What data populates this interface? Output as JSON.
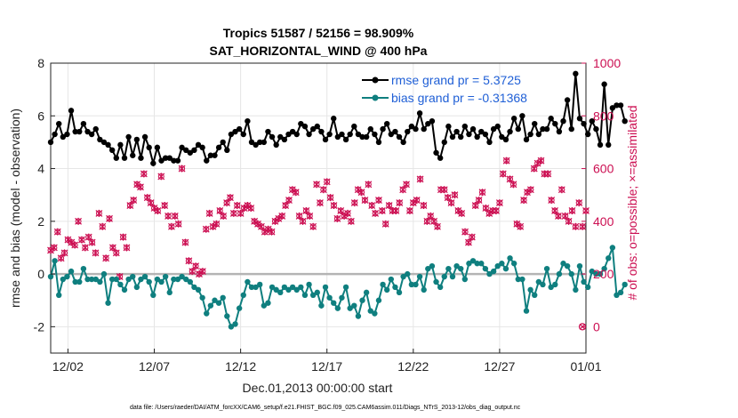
{
  "chart_data": {
    "type": "line",
    "title": "Tropics 51587 / 52156 = 98.909%",
    "subtitle": "SAT_HORIZONTAL_WIND @ 400 hPa",
    "xlabel": "Dec.01,2013 00:00:00 start",
    "ylabel": "rmse and bias (model - observation)",
    "y2label": "# of obs: o=possible; ×=assimilated",
    "footer": "data file: /Users/raeder/DAI/ATM_forcXX/CAM6_setup/f.e21.FHIST_BGC.f09_025.CAM6assim.011/Diags_NTrS_2013-12/obs_diag_output.nc",
    "xlim": [
      0,
      31
    ],
    "ylim": [
      -3,
      8
    ],
    "y2lim": [
      -100,
      1000
    ],
    "x_ticks": [
      1,
      6,
      11,
      16,
      21,
      26,
      31
    ],
    "x_tick_labels": [
      "12/02",
      "12/07",
      "12/12",
      "12/17",
      "12/22",
      "12/27",
      "01/01"
    ],
    "y_ticks": [
      "-2",
      "0",
      "2",
      "4",
      "6",
      "8"
    ],
    "y2_ticks": [
      "0",
      "200",
      "400",
      "600",
      "800",
      "1000"
    ],
    "legend": [
      {
        "label": "rmse grand pr = 5.3725",
        "color": "#000000"
      },
      {
        "label": "bias grand pr = -0.31368",
        "color": "#0f7f7f"
      }
    ],
    "colors": {
      "rmse": "#000000",
      "bias": "#0f7f7f",
      "obs": "#cc0f52",
      "zero": "#b4b4b4"
    },
    "step": 0.25,
    "series": [
      {
        "name": "rmse",
        "values": [
          5.0,
          5.3,
          5.7,
          5.2,
          5.3,
          6.2,
          5.4,
          5.4,
          5.7,
          5.4,
          5.3,
          5.5,
          5.1,
          5.0,
          4.9,
          4.7,
          4.4,
          4.9,
          4.4,
          5.2,
          4.5,
          5.1,
          4.4,
          5.2,
          4.8,
          4.2,
          4.8,
          4.3,
          4.4,
          4.4,
          4.3,
          4.3,
          4.8,
          4.7,
          4.6,
          4.7,
          4.9,
          4.8,
          4.3,
          4.5,
          4.5,
          4.8,
          5.0,
          4.7,
          5.3,
          5.4,
          5.5,
          5.3,
          5.8,
          5.0,
          4.9,
          5.0,
          5.0,
          5.4,
          5.2,
          4.9,
          5.2,
          5.1,
          5.3,
          5.4,
          5.3,
          5.7,
          5.6,
          5.3,
          5.5,
          5.6,
          5.4,
          5.1,
          5.3,
          5.9,
          5.2,
          5.3,
          5.1,
          5.3,
          5.6,
          5.3,
          5.2,
          5.2,
          5.5,
          5.3,
          5.0,
          5.5,
          5.7,
          5.3,
          5.4,
          5.2,
          5.0,
          5.4,
          5.6,
          5.5,
          6.1,
          5.5,
          5.7,
          5.8,
          4.6,
          4.4,
          5.0,
          5.6,
          5.2,
          5.4,
          5.2,
          5.6,
          5.3,
          5.5,
          5.2,
          5.4,
          5.3,
          5.0,
          5.5,
          5.6,
          5.2,
          5.1,
          5.4,
          5.9,
          5.5,
          6.0,
          5.1,
          5.3,
          5.7,
          5.3,
          5.5,
          5.5,
          5.9,
          5.7,
          5.4,
          5.8,
          6.6,
          5.5,
          7.6,
          5.9,
          5.7,
          5.3,
          5.8,
          5.5,
          4.9,
          7.2,
          4.9,
          6.3,
          6.4,
          6.4,
          5.8
        ],
        "color": "#000000"
      },
      {
        "name": "bias",
        "values": [
          -0.1,
          0.5,
          -0.8,
          -0.2,
          -0.1,
          0.1,
          -0.3,
          -0.3,
          0.2,
          -0.2,
          -0.2,
          -0.2,
          -0.3,
          0.0,
          -1.1,
          -0.2,
          -0.2,
          -0.4,
          -0.6,
          -0.2,
          -0.1,
          -0.5,
          -0.2,
          -0.1,
          -0.3,
          -0.8,
          -0.2,
          -0.3,
          -0.1,
          -0.7,
          -0.2,
          -0.2,
          -0.1,
          -0.2,
          -0.3,
          -0.5,
          -0.6,
          -0.9,
          -1.5,
          -1.2,
          -1.0,
          -1.1,
          -0.9,
          -1.6,
          -2.0,
          -1.9,
          -1.3,
          -0.8,
          -0.3,
          -0.5,
          -0.5,
          -0.4,
          -1.2,
          -1.1,
          -0.5,
          -0.6,
          -0.7,
          -0.5,
          -0.6,
          -0.5,
          -0.6,
          -0.5,
          -0.8,
          -0.4,
          -0.8,
          -0.7,
          -1.2,
          -0.5,
          -0.9,
          -1.1,
          -1.3,
          -0.9,
          -0.5,
          -1.3,
          -1.2,
          -1.6,
          -1.0,
          -0.7,
          -1.4,
          -1.5,
          -1.0,
          -0.4,
          -0.6,
          -0.2,
          -0.5,
          -0.7,
          -0.1,
          0.0,
          -0.4,
          -0.4,
          -0.1,
          -0.6,
          0.2,
          0.3,
          -0.3,
          -0.5,
          -0.1,
          0.2,
          -0.1,
          0.3,
          0.2,
          -0.2,
          0.4,
          0.5,
          0.4,
          0.4,
          0.2,
          0.0,
          0.1,
          0.3,
          0.4,
          0.2,
          0.6,
          0.4,
          -0.2,
          -0.2,
          -1.4,
          -0.6,
          -0.8,
          -0.3,
          -0.4,
          0.2,
          -0.5,
          -0.4,
          0.0,
          0.4,
          0.3,
          0.0,
          -0.6,
          0.3,
          -0.3,
          -0.5,
          0.1,
          0.0,
          0.0,
          0.2,
          0.6,
          1.0,
          -0.8,
          -0.7,
          -0.4
        ],
        "color": "#0f7f7f"
      },
      {
        "name": "nobs_possible",
        "values": [
          290,
          300,
          360,
          260,
          280,
          330,
          320,
          310,
          400,
          330,
          300,
          340,
          320,
          280,
          430,
          380,
          260,
          410,
          300,
          280,
          190,
          340,
          300,
          460,
          480,
          540,
          530,
          580,
          490,
          470,
          450,
          440,
          570,
          460,
          420,
          380,
          420,
          390,
          600,
          320,
          250,
          210,
          230,
          200,
          210,
          370,
          430,
          380,
          390,
          440,
          420,
          470,
          490,
          430,
          460,
          430,
          450,
          460,
          450,
          400,
          390,
          380,
          360,
          370,
          360,
          400,
          410,
          420,
          460,
          480,
          520,
          510,
          420,
          400,
          440,
          420,
          380,
          540,
          470,
          520,
          550,
          490,
          460,
          410,
          440,
          420,
          430,
          400,
          470,
          520,
          510,
          480,
          540,
          460,
          430,
          480,
          440,
          390,
          460,
          440,
          440,
          470,
          520,
          540,
          440,
          470,
          480,
          560,
          460,
          400,
          420,
          400,
          380,
          520,
          520,
          490,
          470,
          500,
          440,
          430,
          360,
          320,
          340,
          460,
          480,
          510,
          450,
          430,
          440,
          440,
          470,
          580,
          630,
          560,
          540,
          390,
          380,
          480,
          510,
          520,
          600,
          620,
          630,
          580,
          580,
          480,
          440,
          420,
          520,
          420,
          400,
          440,
          380,
          470,
          380,
          440
        ],
        "color": "#cc0f52"
      }
    ]
  }
}
